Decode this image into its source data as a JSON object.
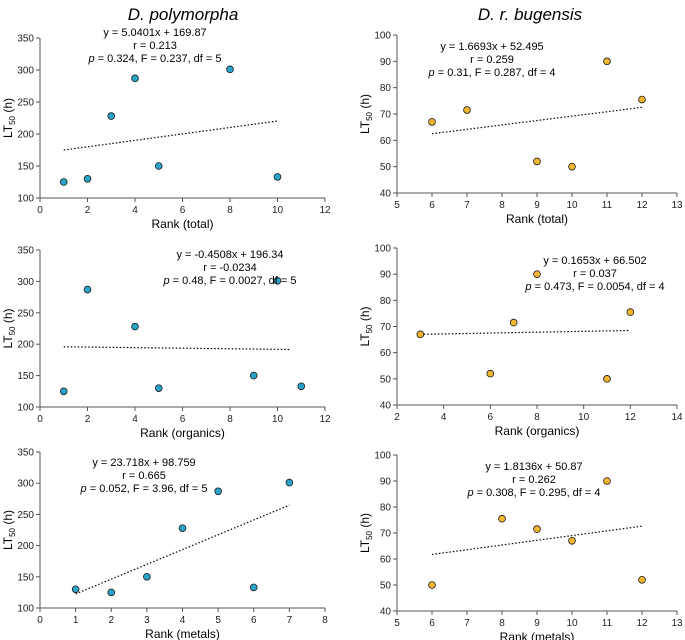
{
  "column_titles": {
    "left": "D. polymorpha",
    "right": "D. r. bugensis"
  },
  "colors": {
    "polymorpha_point": "#29a3c8",
    "bugensis_point": "#f2b630",
    "point_stroke": "#1a1a1a"
  },
  "ylabel": {
    "main": "LT",
    "sub": "50",
    "unit": " (h)"
  },
  "chart_data": [
    {
      "id": "poly-total",
      "type": "scatter",
      "xlabel": "Rank (total)",
      "xlim": [
        0,
        12
      ],
      "xticks": [
        0,
        2,
        4,
        6,
        8,
        10,
        12
      ],
      "ylim": [
        100,
        350
      ],
      "yticks": [
        100,
        150,
        200,
        250,
        300,
        350
      ],
      "x": [
        1,
        2,
        3,
        4,
        5,
        8,
        10
      ],
      "y": [
        125,
        130,
        228,
        287,
        150,
        301,
        133
      ],
      "fit": {
        "slope": 5.0401,
        "intercept": 169.87,
        "x_from": 1,
        "x_to": 10
      },
      "annotation": {
        "equation": "y = 5.0401x + 169.87",
        "r": "r = 0.213",
        "p_label": "p",
        "stats": " = 0.324, F = 0.237, df = 5"
      }
    },
    {
      "id": "bug-total",
      "type": "scatter",
      "xlabel": "Rank (total)",
      "xlim": [
        5,
        13
      ],
      "xticks": [
        5,
        6,
        7,
        8,
        9,
        10,
        11,
        12,
        13
      ],
      "ylim": [
        40,
        100
      ],
      "yticks": [
        40,
        50,
        60,
        70,
        80,
        90,
        100
      ],
      "x": [
        6,
        7,
        9,
        10,
        11,
        12
      ],
      "y": [
        67,
        71.5,
        52,
        50,
        90,
        75.5
      ],
      "fit": {
        "slope": 1.6693,
        "intercept": 52.495,
        "x_from": 6,
        "x_to": 12
      },
      "annotation": {
        "equation": "y = 1.6693x + 52.495",
        "r": "r = 0.259",
        "p_label": "p",
        "stats": " = 0.31, F = 0.287, df = 4"
      }
    },
    {
      "id": "poly-organics",
      "type": "scatter",
      "xlabel": "Rank (organics)",
      "xlim": [
        0,
        12
      ],
      "xticks": [
        0,
        2,
        4,
        6,
        8,
        10,
        12
      ],
      "ylim": [
        100,
        350
      ],
      "yticks": [
        100,
        150,
        200,
        250,
        300,
        350
      ],
      "x": [
        1,
        2,
        4,
        5,
        9,
        10,
        11
      ],
      "y": [
        125,
        287,
        228,
        130,
        150,
        301,
        133
      ],
      "fit": {
        "slope": -0.4508,
        "intercept": 196.34,
        "x_from": 1,
        "x_to": 10.5
      },
      "annotation": {
        "equation": "y = -0.4508x + 196.34",
        "r": "r = -0.0234",
        "p_label": "p",
        "stats": " = 0.48, F = 0.0027, df = 5"
      }
    },
    {
      "id": "bug-organics",
      "type": "scatter",
      "xlabel": "Rank (organics)",
      "xlim": [
        2,
        14
      ],
      "xticks": [
        2,
        4,
        6,
        8,
        10,
        12,
        14
      ],
      "ylim": [
        40,
        100
      ],
      "yticks": [
        40,
        50,
        60,
        70,
        80,
        90,
        100
      ],
      "x": [
        3,
        6,
        7,
        8,
        11,
        12
      ],
      "y": [
        67,
        52,
        71.5,
        90,
        50,
        75.5
      ],
      "fit": {
        "slope": 0.1653,
        "intercept": 66.502,
        "x_from": 3,
        "x_to": 12
      },
      "annotation": {
        "equation": "y = 0.1653x + 66.502",
        "r": "r = 0.037",
        "p_label": "p",
        "stats": " = 0.473, F = 0.0054, df = 4"
      }
    },
    {
      "id": "poly-metals",
      "type": "scatter",
      "xlabel": "Rank (metals)",
      "xlim": [
        0,
        8
      ],
      "xticks": [
        0,
        1,
        2,
        3,
        4,
        5,
        6,
        7,
        8
      ],
      "ylim": [
        100,
        350
      ],
      "yticks": [
        100,
        150,
        200,
        250,
        300,
        350
      ],
      "x": [
        1,
        2,
        3,
        4,
        5,
        6,
        7
      ],
      "y": [
        130,
        125,
        150,
        228,
        287,
        133,
        301
      ],
      "fit": {
        "slope": 23.718,
        "intercept": 98.759,
        "x_from": 1,
        "x_to": 7
      },
      "annotation": {
        "equation": "y = 23.718x + 98.759",
        "r": "r = 0.665",
        "p_label": "p",
        "stats": " = 0.052, F = 3.96, df = 5"
      }
    },
    {
      "id": "bug-metals",
      "type": "scatter",
      "xlabel": "Rank (metals)",
      "xlim": [
        5,
        13
      ],
      "xticks": [
        5,
        6,
        7,
        8,
        9,
        10,
        11,
        12,
        13
      ],
      "ylim": [
        40,
        100
      ],
      "yticks": [
        40,
        50,
        60,
        70,
        80,
        90,
        100
      ],
      "x": [
        6,
        8,
        9,
        10,
        11,
        12
      ],
      "y": [
        50,
        75.5,
        71.5,
        67,
        90,
        52
      ],
      "fit": {
        "slope": 1.8136,
        "intercept": 50.87,
        "x_from": 6,
        "x_to": 12
      },
      "annotation": {
        "equation": "y = 1.8136x + 50.87",
        "r": "r = 0.262",
        "p_label": "p",
        "stats": " = 0.308, F = 0.295, df = 4"
      }
    }
  ]
}
